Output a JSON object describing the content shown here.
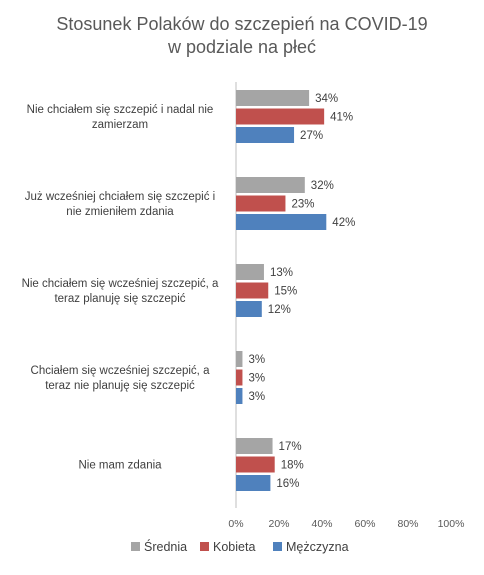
{
  "chart_data": {
    "type": "bar",
    "orientation": "horizontal",
    "title": "Stosunek Polaków do szczepień na COVID-19",
    "subtitle": "w podziale na płeć",
    "categories": [
      [
        "Nie chciałem się szczepić i nadal nie",
        "zamierzam"
      ],
      [
        "Już wcześniej chciałem się szczepić i",
        "nie zmieniłem zdania"
      ],
      [
        "Nie chciałem się wcześniej szczepić, a",
        "teraz planuję się szczepić"
      ],
      [
        "Chciałem się wcześniej szczepić, a",
        "teraz nie planuję się szczepić"
      ],
      [
        "Nie mam zdania"
      ]
    ],
    "series": [
      {
        "name": "Średnia",
        "color": "#a5a5a5",
        "values": [
          34,
          32,
          13,
          3,
          17
        ]
      },
      {
        "name": "Kobieta",
        "color": "#c0504d",
        "values": [
          41,
          23,
          15,
          3,
          18
        ]
      },
      {
        "name": "Mężczyzna",
        "color": "#4f81bd",
        "values": [
          27,
          42,
          12,
          3,
          16
        ]
      }
    ],
    "xlim": [
      0,
      100
    ],
    "xticks": [
      0,
      20,
      40,
      60,
      80,
      100
    ],
    "tick_suffix": "%",
    "value_suffix": "%",
    "grid": false,
    "legend_position": "bottom"
  }
}
